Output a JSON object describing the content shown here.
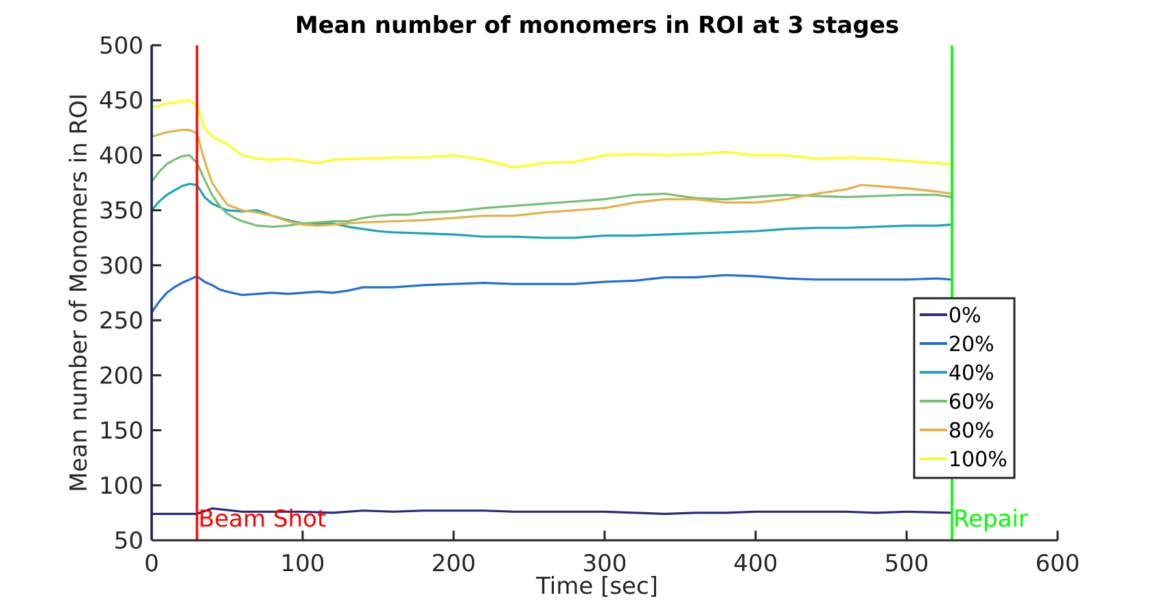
{
  "chart_data": {
    "type": "line",
    "title": "Mean number of monomers in ROI at 3 stages",
    "xlabel": "Time [sec]",
    "ylabel": "Mean number of Monomers in ROI",
    "xlim": [
      0,
      600
    ],
    "ylim": [
      50,
      500
    ],
    "xticks": [
      0,
      100,
      200,
      300,
      400,
      500,
      600
    ],
    "yticks": [
      50,
      100,
      150,
      200,
      250,
      300,
      350,
      400,
      450,
      500
    ],
    "grid": false,
    "legend_position": "right",
    "vlines": [
      {
        "x": 0,
        "color": "#0000ff",
        "label": ""
      },
      {
        "x": 30,
        "color": "#ff0000",
        "label": "Beam Shot"
      },
      {
        "x": 530,
        "color": "#00ff00",
        "label": "Repair"
      }
    ],
    "series": [
      {
        "name": "0%",
        "color": "#2a2a80",
        "points": [
          [
            0,
            74
          ],
          [
            10,
            74
          ],
          [
            20,
            74
          ],
          [
            30,
            74
          ],
          [
            40,
            79
          ],
          [
            60,
            76
          ],
          [
            80,
            76
          ],
          [
            100,
            76
          ],
          [
            120,
            75
          ],
          [
            140,
            77
          ],
          [
            160,
            76
          ],
          [
            180,
            77
          ],
          [
            200,
            77
          ],
          [
            220,
            77
          ],
          [
            240,
            76
          ],
          [
            260,
            76
          ],
          [
            280,
            76
          ],
          [
            300,
            76
          ],
          [
            320,
            75
          ],
          [
            340,
            74
          ],
          [
            360,
            75
          ],
          [
            380,
            75
          ],
          [
            400,
            76
          ],
          [
            420,
            76
          ],
          [
            440,
            76
          ],
          [
            460,
            76
          ],
          [
            480,
            75
          ],
          [
            500,
            76
          ],
          [
            530,
            75
          ]
        ]
      },
      {
        "name": "20%",
        "color": "#1f6fd6",
        "points": [
          [
            0,
            257
          ],
          [
            5,
            267
          ],
          [
            10,
            275
          ],
          [
            15,
            280
          ],
          [
            20,
            284
          ],
          [
            25,
            287
          ],
          [
            30,
            290
          ],
          [
            35,
            285
          ],
          [
            40,
            282
          ],
          [
            45,
            278
          ],
          [
            50,
            276
          ],
          [
            60,
            273
          ],
          [
            70,
            274
          ],
          [
            80,
            275
          ],
          [
            90,
            274
          ],
          [
            100,
            275
          ],
          [
            110,
            276
          ],
          [
            120,
            275
          ],
          [
            130,
            277
          ],
          [
            140,
            280
          ],
          [
            160,
            280
          ],
          [
            180,
            282
          ],
          [
            200,
            283
          ],
          [
            220,
            284
          ],
          [
            240,
            283
          ],
          [
            260,
            283
          ],
          [
            280,
            283
          ],
          [
            300,
            285
          ],
          [
            320,
            286
          ],
          [
            340,
            289
          ],
          [
            360,
            289
          ],
          [
            380,
            291
          ],
          [
            400,
            290
          ],
          [
            420,
            288
          ],
          [
            440,
            287
          ],
          [
            460,
            287
          ],
          [
            480,
            287
          ],
          [
            500,
            287
          ],
          [
            520,
            288
          ],
          [
            530,
            287
          ]
        ]
      },
      {
        "name": "40%",
        "color": "#17a6b8",
        "points": [
          [
            0,
            350
          ],
          [
            5,
            358
          ],
          [
            10,
            364
          ],
          [
            15,
            368
          ],
          [
            20,
            372
          ],
          [
            25,
            374
          ],
          [
            30,
            373
          ],
          [
            35,
            362
          ],
          [
            40,
            356
          ],
          [
            45,
            353
          ],
          [
            50,
            350
          ],
          [
            60,
            349
          ],
          [
            70,
            350
          ],
          [
            80,
            345
          ],
          [
            90,
            341
          ],
          [
            100,
            338
          ],
          [
            110,
            337
          ],
          [
            120,
            338
          ],
          [
            130,
            335
          ],
          [
            140,
            333
          ],
          [
            150,
            331
          ],
          [
            160,
            330
          ],
          [
            180,
            329
          ],
          [
            200,
            328
          ],
          [
            220,
            326
          ],
          [
            240,
            326
          ],
          [
            260,
            325
          ],
          [
            280,
            325
          ],
          [
            300,
            327
          ],
          [
            320,
            327
          ],
          [
            340,
            328
          ],
          [
            360,
            329
          ],
          [
            380,
            330
          ],
          [
            400,
            331
          ],
          [
            420,
            333
          ],
          [
            440,
            334
          ],
          [
            460,
            334
          ],
          [
            480,
            335
          ],
          [
            500,
            336
          ],
          [
            520,
            336
          ],
          [
            530,
            337
          ]
        ]
      },
      {
        "name": "60%",
        "color": "#76c075",
        "points": [
          [
            0,
            376
          ],
          [
            5,
            385
          ],
          [
            10,
            392
          ],
          [
            15,
            396
          ],
          [
            20,
            399
          ],
          [
            25,
            400
          ],
          [
            30,
            393
          ],
          [
            35,
            378
          ],
          [
            40,
            364
          ],
          [
            45,
            354
          ],
          [
            50,
            347
          ],
          [
            55,
            343
          ],
          [
            60,
            340
          ],
          [
            70,
            336
          ],
          [
            80,
            335
          ],
          [
            90,
            336
          ],
          [
            100,
            338
          ],
          [
            110,
            339
          ],
          [
            120,
            340
          ],
          [
            130,
            340
          ],
          [
            140,
            343
          ],
          [
            150,
            345
          ],
          [
            160,
            346
          ],
          [
            170,
            346
          ],
          [
            180,
            348
          ],
          [
            200,
            349
          ],
          [
            220,
            352
          ],
          [
            240,
            354
          ],
          [
            260,
            356
          ],
          [
            280,
            358
          ],
          [
            300,
            360
          ],
          [
            320,
            364
          ],
          [
            340,
            365
          ],
          [
            360,
            361
          ],
          [
            380,
            360
          ],
          [
            400,
            362
          ],
          [
            420,
            364
          ],
          [
            440,
            363
          ],
          [
            460,
            362
          ],
          [
            480,
            363
          ],
          [
            500,
            364
          ],
          [
            520,
            364
          ],
          [
            530,
            362
          ]
        ]
      },
      {
        "name": "80%",
        "color": "#e6b04a",
        "points": [
          [
            0,
            417
          ],
          [
            5,
            419
          ],
          [
            10,
            421
          ],
          [
            15,
            422
          ],
          [
            20,
            423
          ],
          [
            25,
            423
          ],
          [
            30,
            420
          ],
          [
            35,
            395
          ],
          [
            40,
            375
          ],
          [
            45,
            365
          ],
          [
            50,
            355
          ],
          [
            60,
            350
          ],
          [
            70,
            348
          ],
          [
            80,
            345
          ],
          [
            90,
            340
          ],
          [
            100,
            337
          ],
          [
            110,
            336
          ],
          [
            120,
            337
          ],
          [
            140,
            339
          ],
          [
            160,
            340
          ],
          [
            180,
            341
          ],
          [
            200,
            343
          ],
          [
            220,
            345
          ],
          [
            240,
            345
          ],
          [
            260,
            348
          ],
          [
            280,
            350
          ],
          [
            300,
            352
          ],
          [
            320,
            357
          ],
          [
            340,
            360
          ],
          [
            360,
            360
          ],
          [
            380,
            357
          ],
          [
            400,
            357
          ],
          [
            420,
            360
          ],
          [
            440,
            365
          ],
          [
            460,
            369
          ],
          [
            470,
            373
          ],
          [
            480,
            372
          ],
          [
            500,
            370
          ],
          [
            520,
            367
          ],
          [
            530,
            365
          ]
        ]
      },
      {
        "name": "100%",
        "color": "#ffff1a",
        "points": [
          [
            0,
            444
          ],
          [
            5,
            445
          ],
          [
            10,
            447
          ],
          [
            15,
            448
          ],
          [
            20,
            449
          ],
          [
            25,
            450
          ],
          [
            30,
            445
          ],
          [
            35,
            425
          ],
          [
            40,
            417
          ],
          [
            50,
            410
          ],
          [
            60,
            400
          ],
          [
            70,
            397
          ],
          [
            80,
            396
          ],
          [
            90,
            397
          ],
          [
            100,
            395
          ],
          [
            110,
            393
          ],
          [
            120,
            396
          ],
          [
            140,
            397
          ],
          [
            160,
            398
          ],
          [
            180,
            398
          ],
          [
            200,
            400
          ],
          [
            220,
            396
          ],
          [
            240,
            389
          ],
          [
            260,
            393
          ],
          [
            280,
            394
          ],
          [
            300,
            400
          ],
          [
            320,
            401
          ],
          [
            340,
            400
          ],
          [
            360,
            401
          ],
          [
            380,
            403
          ],
          [
            400,
            400
          ],
          [
            420,
            400
          ],
          [
            440,
            397
          ],
          [
            460,
            398
          ],
          [
            480,
            397
          ],
          [
            500,
            395
          ],
          [
            520,
            393
          ],
          [
            530,
            392
          ]
        ]
      }
    ]
  }
}
